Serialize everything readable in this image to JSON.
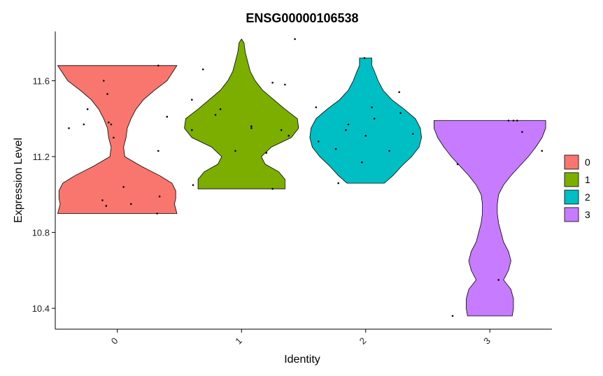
{
  "chart_data": {
    "type": "violin",
    "title": "ENSG00000106538",
    "xlabel": "Identity",
    "ylabel": "Expression Level",
    "categories": [
      "0",
      "1",
      "2",
      "3"
    ],
    "ylim": [
      10.29,
      11.86
    ],
    "yticks": [
      10.4,
      10.8,
      11.2,
      11.6
    ],
    "ytick_labels": [
      "10.4",
      "10.8",
      "11.2",
      "11.6"
    ],
    "colors": [
      "#F8766D",
      "#7CAE00",
      "#00BFC4",
      "#C77CFF"
    ],
    "legend": {
      "position": "right",
      "entries": [
        "0",
        "1",
        "2",
        "3"
      ]
    },
    "grid": false,
    "violins": [
      {
        "group": "0",
        "range": [
          10.9,
          11.68
        ],
        "profile": [
          [
            10.9,
            0.48
          ],
          [
            10.95,
            0.46
          ],
          [
            10.98,
            0.47
          ],
          [
            11.02,
            0.47
          ],
          [
            11.06,
            0.44
          ],
          [
            11.1,
            0.34
          ],
          [
            11.15,
            0.19
          ],
          [
            11.2,
            0.06
          ],
          [
            11.25,
            0.05
          ],
          [
            11.3,
            0.07
          ],
          [
            11.35,
            0.08
          ],
          [
            11.4,
            0.11
          ],
          [
            11.45,
            0.15
          ],
          [
            11.5,
            0.21
          ],
          [
            11.55,
            0.3
          ],
          [
            11.6,
            0.4
          ],
          [
            11.65,
            0.45
          ],
          [
            11.68,
            0.48
          ]
        ],
        "points": [
          [
            -0.39,
            11.35
          ],
          [
            -0.27,
            11.37
          ],
          [
            -0.24,
            11.45
          ],
          [
            -0.11,
            11.6
          ],
          [
            -0.08,
            11.53
          ],
          [
            -0.07,
            11.38
          ],
          [
            -0.05,
            11.37
          ],
          [
            -0.03,
            11.3
          ],
          [
            -0.12,
            10.97
          ],
          [
            -0.09,
            10.94
          ],
          [
            0.05,
            11.04
          ],
          [
            0.11,
            10.95
          ],
          [
            0.33,
            11.68
          ],
          [
            0.33,
            11.23
          ],
          [
            0.34,
            10.99
          ],
          [
            0.32,
            10.9
          ],
          [
            0.4,
            11.41
          ]
        ]
      },
      {
        "group": "1",
        "range": [
          11.03,
          11.82
        ],
        "profile": [
          [
            11.03,
            0.35
          ],
          [
            11.08,
            0.35
          ],
          [
            11.12,
            0.3
          ],
          [
            11.16,
            0.19
          ],
          [
            11.2,
            0.16
          ],
          [
            11.25,
            0.24
          ],
          [
            11.3,
            0.4
          ],
          [
            11.35,
            0.46
          ],
          [
            11.4,
            0.45
          ],
          [
            11.45,
            0.35
          ],
          [
            11.5,
            0.26
          ],
          [
            11.55,
            0.17
          ],
          [
            11.6,
            0.11
          ],
          [
            11.65,
            0.07
          ],
          [
            11.7,
            0.05
          ],
          [
            11.75,
            0.03
          ],
          [
            11.8,
            0.02
          ],
          [
            11.82,
            0.0
          ]
        ],
        "points": [
          [
            -0.39,
            11.05
          ],
          [
            -0.4,
            11.34
          ],
          [
            -0.4,
            11.5
          ],
          [
            -0.31,
            11.66
          ],
          [
            -0.21,
            11.42
          ],
          [
            -0.17,
            11.45
          ],
          [
            -0.05,
            11.23
          ],
          [
            0.08,
            11.35
          ],
          [
            0.08,
            11.36
          ],
          [
            0.2,
            11.22
          ],
          [
            0.25,
            11.03
          ],
          [
            0.25,
            11.59
          ],
          [
            0.35,
            11.58
          ],
          [
            0.32,
            11.34
          ],
          [
            0.38,
            11.31
          ],
          [
            0.43,
            11.82
          ]
        ]
      },
      {
        "group": "2",
        "range": [
          11.06,
          11.72
        ],
        "profile": [
          [
            11.06,
            0.15
          ],
          [
            11.1,
            0.22
          ],
          [
            11.15,
            0.29
          ],
          [
            11.2,
            0.37
          ],
          [
            11.25,
            0.43
          ],
          [
            11.3,
            0.45
          ],
          [
            11.35,
            0.44
          ],
          [
            11.4,
            0.4
          ],
          [
            11.45,
            0.31
          ],
          [
            11.5,
            0.21
          ],
          [
            11.55,
            0.14
          ],
          [
            11.6,
            0.1
          ],
          [
            11.65,
            0.07
          ],
          [
            11.68,
            0.05
          ],
          [
            11.72,
            0.05
          ]
        ],
        "points": [
          [
            -0.4,
            11.46
          ],
          [
            -0.38,
            11.28
          ],
          [
            -0.24,
            11.24
          ],
          [
            -0.22,
            11.06
          ],
          [
            -0.16,
            11.34
          ],
          [
            -0.14,
            11.37
          ],
          [
            -0.03,
            11.17
          ],
          [
            -0.01,
            11.72
          ],
          [
            0.0,
            11.31
          ],
          [
            0.05,
            11.46
          ],
          [
            0.07,
            11.4
          ],
          [
            0.19,
            11.23
          ],
          [
            0.27,
            11.54
          ],
          [
            0.28,
            11.43
          ],
          [
            0.38,
            11.32
          ]
        ]
      },
      {
        "group": "3",
        "range": [
          10.36,
          11.39
        ],
        "profile": [
          [
            10.36,
            0.18
          ],
          [
            10.4,
            0.19
          ],
          [
            10.45,
            0.19
          ],
          [
            10.5,
            0.17
          ],
          [
            10.55,
            0.11
          ],
          [
            10.6,
            0.15
          ],
          [
            10.65,
            0.17
          ],
          [
            10.7,
            0.15
          ],
          [
            10.75,
            0.11
          ],
          [
            10.8,
            0.09
          ],
          [
            10.85,
            0.07
          ],
          [
            10.9,
            0.06
          ],
          [
            10.95,
            0.06
          ],
          [
            11.0,
            0.07
          ],
          [
            11.05,
            0.11
          ],
          [
            11.1,
            0.17
          ],
          [
            11.15,
            0.24
          ],
          [
            11.2,
            0.31
          ],
          [
            11.25,
            0.37
          ],
          [
            11.3,
            0.42
          ],
          [
            11.35,
            0.45
          ],
          [
            11.39,
            0.45
          ]
        ],
        "points": [
          [
            -0.3,
            10.36
          ],
          [
            -0.26,
            11.16
          ],
          [
            0.07,
            10.55
          ],
          [
            0.15,
            11.39
          ],
          [
            0.19,
            11.39
          ],
          [
            0.22,
            11.39
          ],
          [
            0.26,
            11.33
          ],
          [
            0.42,
            11.23
          ]
        ]
      }
    ]
  }
}
